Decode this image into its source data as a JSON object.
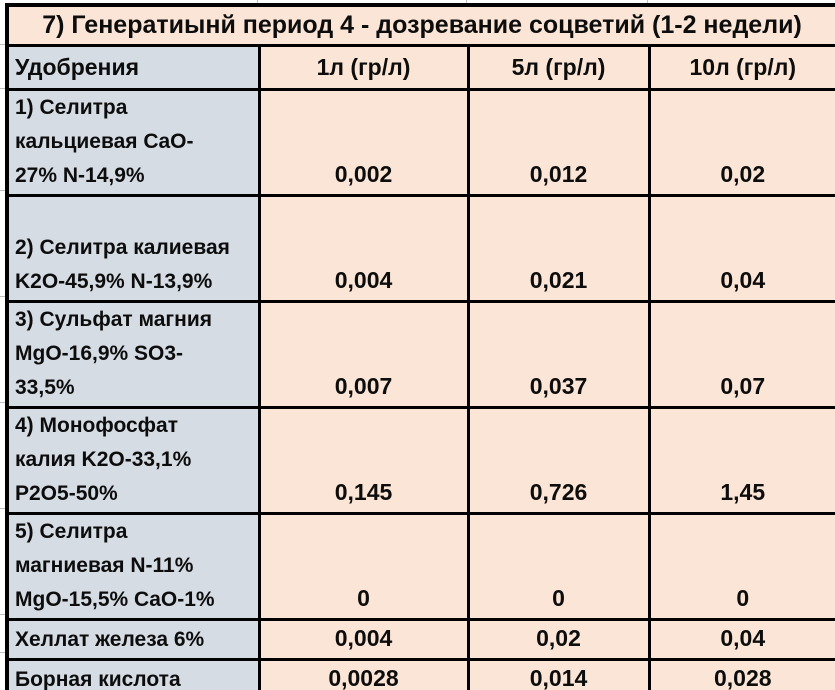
{
  "title": "7) Генератиынй период 4 - дозревание соцветий (1-2 недели)",
  "table": {
    "headers": [
      "Удобрения",
      "1л (гр/л)",
      "5л (гр/л)",
      "10л (гр/л)"
    ],
    "rows": [
      {
        "name_lines": [
          "1) Селитра",
          "кальциевая CaO-",
          "27% N-14,9%"
        ],
        "values": [
          "0,002",
          "0,012",
          "0,02"
        ]
      },
      {
        "name_lines": [
          "2) Селитра калиевая",
          "K2O-45,9% N-13,9%"
        ],
        "values": [
          "0,004",
          "0,021",
          "0,04"
        ]
      },
      {
        "name_lines": [
          "3) Сульфат магния",
          "MgO-16,9% SO3-",
          "33,5%"
        ],
        "values": [
          "0,007",
          "0,037",
          "0,07"
        ]
      },
      {
        "name_lines": [
          "4) Монофосфат",
          "калия K2O-33,1%",
          "P2O5-50%"
        ],
        "values": [
          "0,145",
          "0,726",
          "1,45"
        ]
      },
      {
        "name_lines": [
          "5) Селитра",
          "магниевая N-11%",
          "MgO-15,5% CaO-1%"
        ],
        "values": [
          "0",
          "0",
          "0"
        ]
      },
      {
        "name_lines": [
          "Хеллат железа 6%"
        ],
        "values": [
          "0,004",
          "0,02",
          "0,04"
        ]
      },
      {
        "name_lines": [
          "Борная кислота"
        ],
        "values": [
          "0,0028",
          "0,014",
          "0,028"
        ]
      }
    ]
  },
  "chart_data": {
    "type": "table",
    "title": "7) Генератиынй период 4 - дозревание соцветий (1-2 недели)",
    "columns": [
      "Удобрения",
      "1л (гр/л)",
      "5л (гр/л)",
      "10л (гр/л)"
    ],
    "rows": [
      [
        "1) Селитра кальциевая CaO-27% N-14,9%",
        "0,002",
        "0,012",
        "0,02"
      ],
      [
        "2) Селитра калиевая K2O-45,9% N-13,9%",
        "0,004",
        "0,021",
        "0,04"
      ],
      [
        "3) Сульфат магния MgO-16,9% SO3-33,5%",
        "0,007",
        "0,037",
        "0,07"
      ],
      [
        "4) Монофосфат калия K2O-33,1% P2O5-50%",
        "0,145",
        "0,726",
        "1,45"
      ],
      [
        "5) Селитра магниевая N-11% MgO-15,5% CaO-1%",
        "0",
        "0",
        "0"
      ],
      [
        "Хеллат железа 6%",
        "0,004",
        "0,02",
        "0,04"
      ],
      [
        "Борная кислота",
        "0,0028",
        "0,014",
        "0,028"
      ]
    ]
  },
  "colors": {
    "peach": "#fbe5d6",
    "bluegray": "#d6dce4",
    "border": "#000000",
    "text": "#0d0d0d"
  }
}
